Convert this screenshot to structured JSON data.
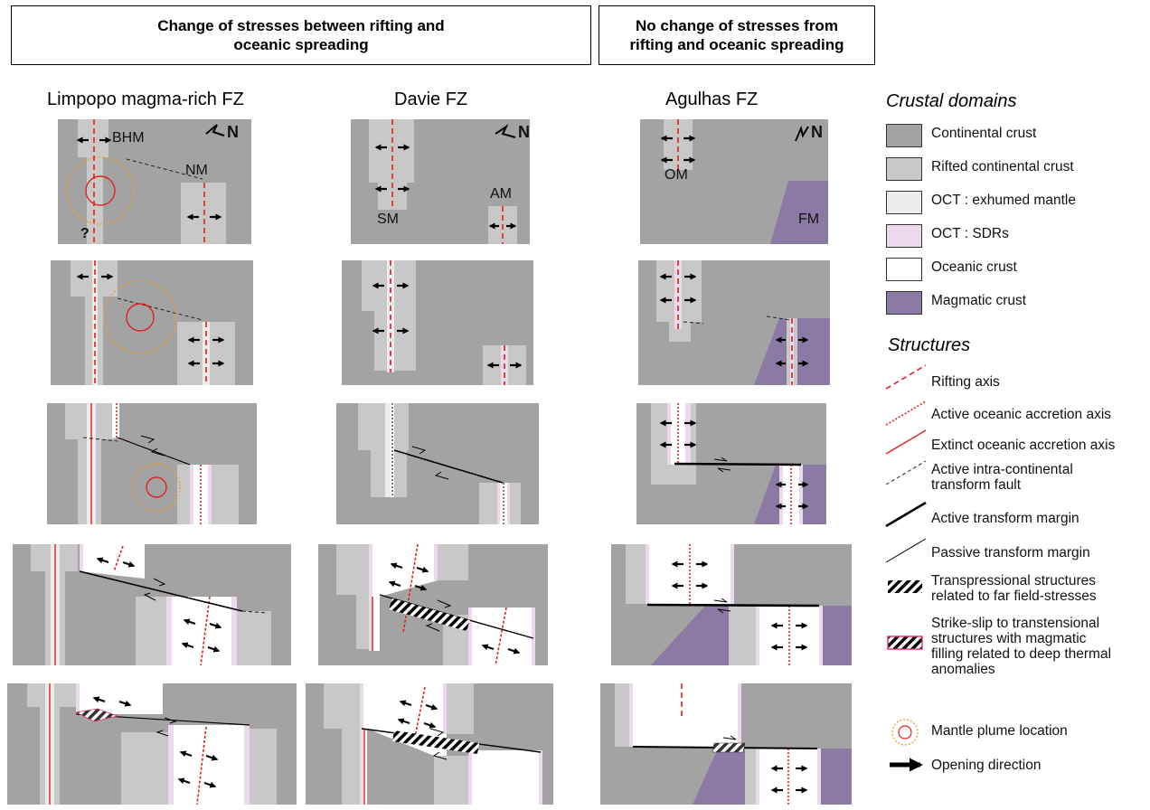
{
  "headers": {
    "left": [
      "Change of stresses between rifting and",
      "oceanic spreading"
    ],
    "right": [
      "No change of stresses from",
      "rifting and oceanic spreading"
    ]
  },
  "columns": [
    {
      "title": "Limpopo magma-rich FZ"
    },
    {
      "title": "Davie FZ"
    },
    {
      "title": "Agulhas FZ"
    }
  ],
  "margin_labels": {
    "limpopo": [
      "BHM",
      "NM",
      "?"
    ],
    "davie": [
      "SM",
      "AM"
    ],
    "agulhas": [
      "OM",
      "FM"
    ]
  },
  "north_label": "N",
  "legend": {
    "domains_title": "Crustal domains",
    "domains": [
      {
        "label": "Continental crust",
        "color": "#a3a3a3"
      },
      {
        "label": "Rifted continental crust",
        "color": "#c8c8c8"
      },
      {
        "label": "OCT : exhumed mantle",
        "color": "#ececec"
      },
      {
        "label": "OCT : SDRs",
        "color": "#ecd9ec"
      },
      {
        "label": "Oceanic crust",
        "color": "#ffffff"
      },
      {
        "label": "Magmatic crust",
        "color": "#8b7ba4"
      }
    ],
    "structures_title": "Structures",
    "structures": [
      {
        "label": "Rifting axis"
      },
      {
        "label": "Active oceanic accretion axis"
      },
      {
        "label": "Extinct oceanic accretion axis"
      },
      {
        "label": "Active intra-continental",
        "label2": "transform fault"
      },
      {
        "label": "Active transform margin"
      },
      {
        "label": "Passive transform margin"
      },
      {
        "label": "Transpressional structures",
        "label2": "related to far field-stresses"
      },
      {
        "label": "Strike-slip to transtensional",
        "label2": "structures with magmatic",
        "label3": "filling related to deep thermal",
        "label4": "anomalies"
      },
      {
        "label": "Mantle plume location"
      },
      {
        "label": "Opening direction"
      }
    ]
  },
  "colors": {
    "continental": "#a3a3a3",
    "rifted": "#c8c8c8",
    "exhumed": "#ececec",
    "sdr": "#ecd9ec",
    "oceanic": "#ffffff",
    "magmatic": "#8b7ba4",
    "axis": "#e02020",
    "plume": "#f0a030"
  }
}
